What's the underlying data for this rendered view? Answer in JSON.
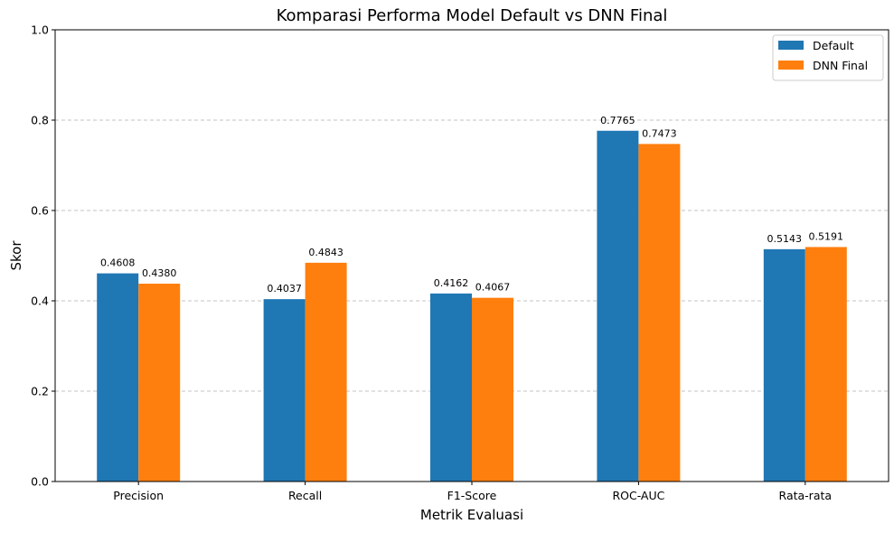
{
  "chart_data": {
    "type": "bar",
    "title": "Komparasi Performa Model Default vs DNN Final",
    "xlabel": "Metrik Evaluasi",
    "ylabel": "Skor",
    "ylim": [
      0,
      1.0
    ],
    "yticks": [
      "0.0",
      "0.2",
      "0.4",
      "0.6",
      "0.8",
      "1.0"
    ],
    "grid": "y-dashed",
    "legend_position": "top-right",
    "categories": [
      "Precision",
      "Recall",
      "F1-Score",
      "ROC-AUC",
      "Rata-rata"
    ],
    "series": [
      {
        "name": "Default",
        "color": "#1f77b4",
        "values": [
          0.4608,
          0.4037,
          0.4162,
          0.7765,
          0.5143
        ],
        "labels": [
          "0.4608",
          "0.4037",
          "0.4162",
          "0.7765",
          "0.5143"
        ]
      },
      {
        "name": "DNN Final",
        "color": "#ff7f0e",
        "values": [
          0.438,
          0.4843,
          0.4067,
          0.7473,
          0.5191
        ],
        "labels": [
          "0.4380",
          "0.4843",
          "0.4067",
          "0.7473",
          "0.5191"
        ]
      }
    ]
  }
}
